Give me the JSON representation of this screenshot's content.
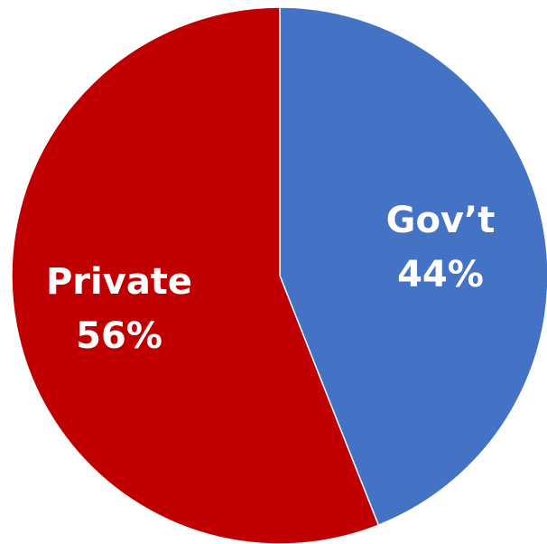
{
  "chart_data": {
    "type": "pie",
    "title": "",
    "start": "top",
    "direction": "clockwise",
    "legend": "none",
    "slices": [
      {
        "label": "Gov’t",
        "value": 44,
        "value_label": "44%",
        "color": "#4472C4"
      },
      {
        "label": "Private",
        "value": 56,
        "value_label": "56%",
        "color": "#C00000"
      }
    ]
  }
}
